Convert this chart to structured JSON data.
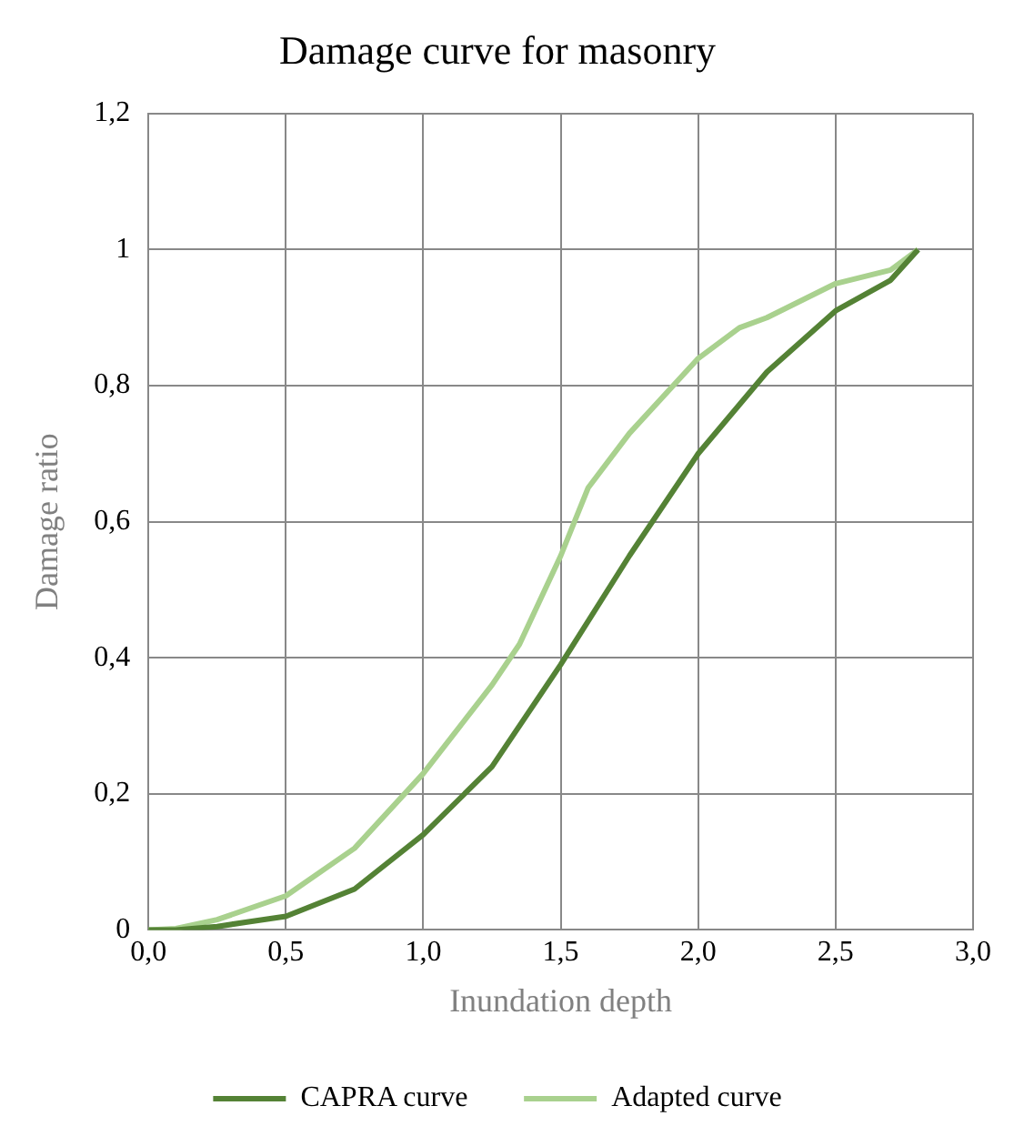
{
  "chart_data": {
    "type": "line",
    "title": "Damage curve for masonry",
    "xlabel": "Inundation depth",
    "ylabel": "Damage ratio",
    "xlim": [
      0,
      3
    ],
    "xticks": [
      {
        "value": 0,
        "label": "0,0"
      },
      {
        "value": 0.5,
        "label": "0,5"
      },
      {
        "value": 1,
        "label": "1,0"
      },
      {
        "value": 1.5,
        "label": "1,5"
      },
      {
        "value": 2,
        "label": "2,0"
      },
      {
        "value": 2.5,
        "label": "2,5"
      },
      {
        "value": 3,
        "label": "3,0"
      }
    ],
    "ylim": [
      0,
      1.2
    ],
    "yticks": [
      0,
      {
        "value": 0.2,
        "label": "0,2"
      },
      {
        "value": 0.4,
        "label": "0,4"
      },
      {
        "value": 0.6,
        "label": "0,6"
      },
      {
        "value": 0.8,
        "label": "0,8"
      },
      1,
      {
        "value": 1.2,
        "label": "1,2"
      }
    ],
    "grid": true,
    "legend": "bottom",
    "marker": "none",
    "line_style": "solid",
    "series": [
      {
        "name": "CAPRA curve",
        "color": "#548235",
        "x": [
          0,
          0.1,
          0.25,
          0.5,
          0.75,
          1.0,
          1.25,
          1.5,
          1.75,
          2.0,
          2.25,
          2.5,
          2.7,
          2.8
        ],
        "values": [
          0,
          0,
          0.005,
          0.02,
          0.06,
          0.14,
          0.24,
          0.39,
          0.55,
          0.7,
          0.82,
          0.91,
          0.955,
          1.0
        ]
      },
      {
        "name": "Adapted curve",
        "color": "#a9d18e",
        "x": [
          0,
          0.1,
          0.25,
          0.5,
          0.75,
          1.0,
          1.25,
          1.35,
          1.5,
          1.6,
          1.75,
          2.0,
          2.15,
          2.25,
          2.5,
          2.7,
          2.8
        ],
        "values": [
          0,
          0.002,
          0.015,
          0.05,
          0.12,
          0.23,
          0.36,
          0.42,
          0.55,
          0.65,
          0.73,
          0.84,
          0.885,
          0.9,
          0.95,
          0.97,
          1.0
        ]
      }
    ]
  }
}
